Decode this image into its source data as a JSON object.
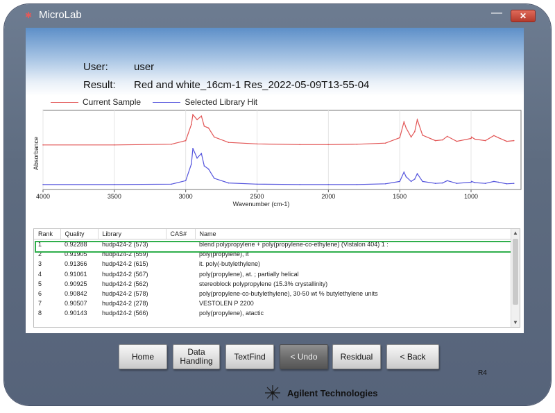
{
  "window": {
    "title": "MicroLab",
    "minimize_glyph": "—",
    "close_glyph": "✕"
  },
  "header": {
    "user_label": "User:",
    "user_value": "user",
    "result_label": "Result:",
    "result_value": "Red and white_16cm-1 Res_2022-05-09T13-55-04"
  },
  "chart_data": {
    "type": "line",
    "title": "",
    "xlabel": "Wavenumber (cm-1)",
    "ylabel": "Absorbance",
    "xlim": [
      4000,
      650
    ],
    "x_ticks": [
      "4000",
      "3500",
      "3000",
      "2500",
      "2000",
      "1500",
      "1000"
    ],
    "grid": true,
    "legend": "top-left",
    "series": [
      {
        "name": "Current Sample",
        "color": "#e25555",
        "x": [
          4000,
          3500,
          3100,
          3000,
          2960,
          2950,
          2920,
          2890,
          2870,
          2840,
          2800,
          2700,
          2500,
          2200,
          2000,
          1800,
          1600,
          1500,
          1470,
          1455,
          1420,
          1395,
          1377,
          1340,
          1250,
          1200,
          1167,
          1100,
          1000,
          997,
          973,
          900,
          840,
          808,
          750,
          700
        ],
        "values": [
          0.08,
          0.08,
          0.1,
          0.2,
          0.65,
          0.92,
          0.78,
          0.88,
          0.6,
          0.55,
          0.3,
          0.15,
          0.11,
          0.09,
          0.09,
          0.1,
          0.13,
          0.28,
          0.72,
          0.55,
          0.3,
          0.45,
          0.78,
          0.35,
          0.2,
          0.22,
          0.32,
          0.18,
          0.26,
          0.3,
          0.24,
          0.2,
          0.34,
          0.28,
          0.18,
          0.2
        ]
      },
      {
        "name": "Selected Library Hit",
        "color": "#5555dd",
        "x": [
          4000,
          3500,
          3100,
          3000,
          2960,
          2950,
          2920,
          2890,
          2870,
          2840,
          2800,
          2700,
          2500,
          2200,
          2000,
          1800,
          1600,
          1500,
          1470,
          1455,
          1420,
          1395,
          1377,
          1340,
          1250,
          1200,
          1167,
          1100,
          1000,
          997,
          973,
          900,
          840,
          808,
          750,
          700
        ],
        "values": [
          0.02,
          0.02,
          0.03,
          0.12,
          0.55,
          0.95,
          0.7,
          0.82,
          0.5,
          0.42,
          0.18,
          0.06,
          0.03,
          0.02,
          0.02,
          0.02,
          0.04,
          0.1,
          0.34,
          0.22,
          0.1,
          0.16,
          0.3,
          0.1,
          0.05,
          0.06,
          0.12,
          0.05,
          0.08,
          0.1,
          0.07,
          0.05,
          0.1,
          0.08,
          0.04,
          0.05
        ]
      }
    ]
  },
  "table": {
    "columns": [
      "Rank",
      "Quality",
      "Library",
      "CAS#",
      "Name"
    ],
    "rows": [
      [
        "1",
        "0.92288",
        "hudp424-2 (573)",
        "",
        "blend polypropylene + poly(propylene-co-ethylene) (Vistalon 404) 1 :"
      ],
      [
        "2",
        "0.91905",
        "hudp424-2 (559)",
        "",
        "poly(propylene), it"
      ],
      [
        "3",
        "0.91366",
        "hudp424-2 (615)",
        "",
        "it. poly(-butylethylene)"
      ],
      [
        "4",
        "0.91061",
        "hudp424-2 (567)",
        "",
        "poly(propylene), at. ; partially helical"
      ],
      [
        "5",
        "0.90925",
        "hudp424-2 (562)",
        "",
        "stereoblock polypropylene (15.3% crystallinity)"
      ],
      [
        "6",
        "0.90842",
        "hudp424-2 (578)",
        "",
        "poly(propylene-co-butylethylene), 30-50 wt % butylethylene units"
      ],
      [
        "7",
        "0.90507",
        "hudp424-2 (278)",
        "",
        "VESTOLEN P 2200"
      ],
      [
        "8",
        "0.90143",
        "hudp424-2 (566)",
        "",
        "poly(propylene), atactic"
      ]
    ],
    "selected_rank": "1",
    "scroll_up": "▲",
    "scroll_down": "▼"
  },
  "buttons": {
    "home": "Home",
    "data_handling": "Data Handling",
    "textfind": "TextFind",
    "undo": "< Undo",
    "residual": "Residual",
    "back": "< Back"
  },
  "footer": {
    "revision": "R4",
    "brand": "Agilent Technologies"
  }
}
